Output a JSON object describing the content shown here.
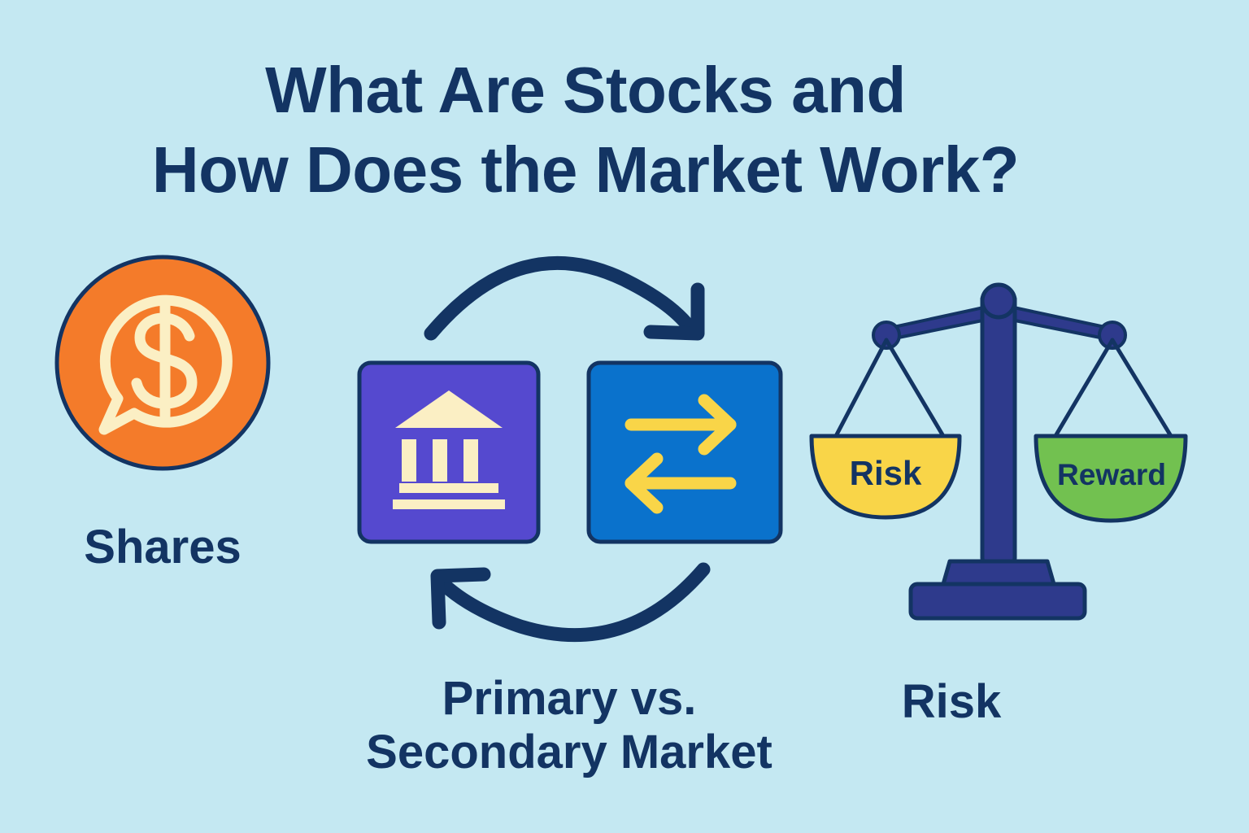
{
  "title": {
    "line1": "What Are Stocks and",
    "line2": "How Does the Market Work?"
  },
  "captions": {
    "shares": "Shares",
    "market_line1": "Primary vs.",
    "market_line2": "Secondary Market",
    "risk": "Risk"
  },
  "scale": {
    "left_pan": "Risk",
    "right_pan": "Reward"
  },
  "icons": {
    "shares": "dollar-chat-bubble-icon",
    "primary_market": "bank-building-icon",
    "secondary_market": "exchange-arrows-icon",
    "cycle": "circular-arrows-icon",
    "risk_reward": "balance-scale-icon"
  },
  "colors": {
    "background": "#c4e8f2",
    "ink": "#133463",
    "orange": "#f47b2a",
    "cream": "#fbefc4",
    "purple": "#5549cf",
    "blue": "#0a72cc",
    "yellow": "#f9d548",
    "green": "#72c150",
    "scale": "#2e3a8c"
  }
}
